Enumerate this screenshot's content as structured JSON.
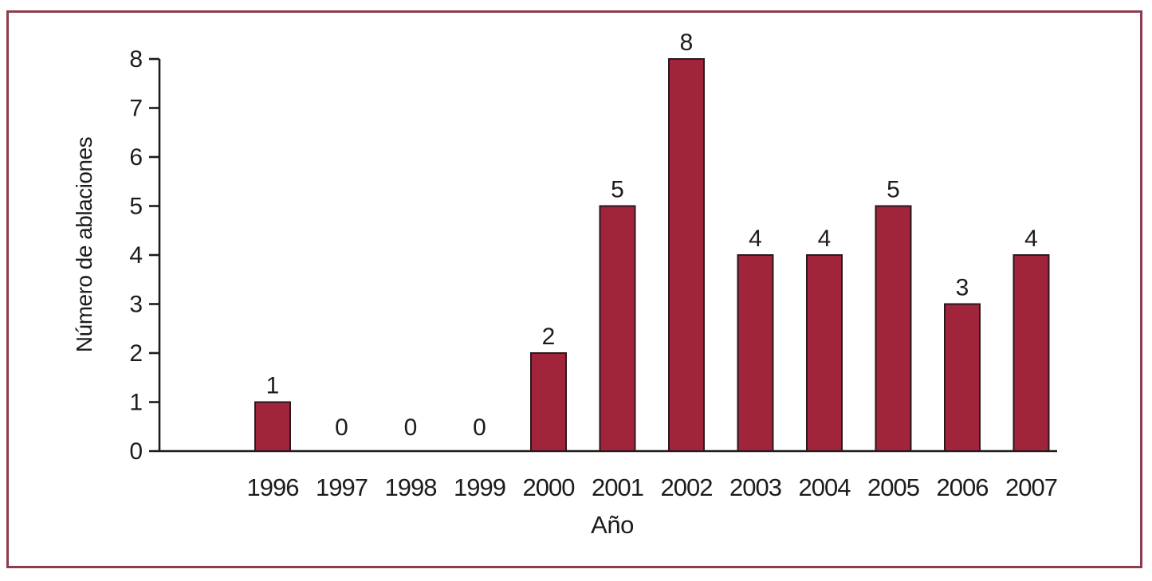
{
  "figure": {
    "frame_color": "#8d3b4d",
    "background_color": "#ffffff"
  },
  "chart_data": {
    "type": "bar",
    "title": "",
    "categories": [
      "1996",
      "1997",
      "1998",
      "1999",
      "2000",
      "2001",
      "2002",
      "2003",
      "2004",
      "2005",
      "2006",
      "2007"
    ],
    "values": [
      1,
      0,
      0,
      0,
      2,
      5,
      8,
      4,
      4,
      5,
      3,
      4
    ],
    "value_labels": [
      "1",
      "0",
      "0",
      "0",
      "2",
      "5",
      "8",
      "4",
      "4",
      "5",
      "3",
      "4"
    ],
    "xlabel": "Año",
    "ylabel": "Número de ablaciones",
    "ylim": [
      0,
      8
    ],
    "yticks": [
      0,
      1,
      2,
      3,
      4,
      5,
      6,
      7,
      8
    ],
    "grid": false,
    "legend_position": "none",
    "bar_color": "#a0243a",
    "bar_edge_color": "#2b171e",
    "axis_color": "#1c1c1c",
    "text_color": "#1c1c1c"
  }
}
